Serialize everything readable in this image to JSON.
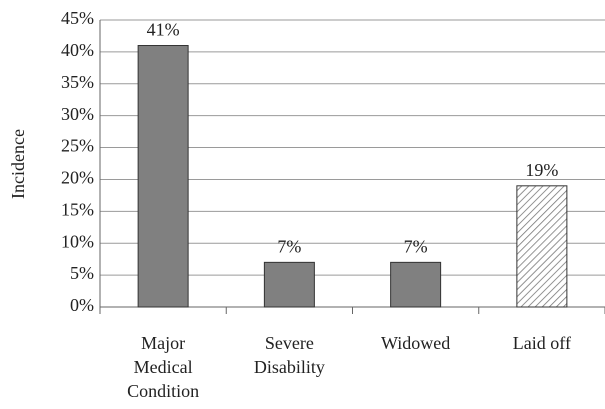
{
  "chart_data": {
    "type": "bar",
    "y_label": "Incidence",
    "categories": [
      "Major Medical Condition",
      "Severe Disability",
      "Widowed",
      "Laid off"
    ],
    "values": [
      41,
      7,
      7,
      19
    ],
    "value_labels": [
      "41%",
      "7%",
      "7%",
      "19%"
    ],
    "color": "#808080",
    "patterns": [
      "solid",
      "solid",
      "solid",
      "hatch"
    ],
    "ylim": [
      0,
      45
    ],
    "yticks": [
      {
        "value": 0,
        "label": "0%"
      },
      {
        "value": 5,
        "label": "5%"
      },
      {
        "value": 10,
        "label": "10%"
      },
      {
        "value": 15,
        "label": "15%"
      },
      {
        "value": 20,
        "label": "20%"
      },
      {
        "value": 25,
        "label": "25%"
      },
      {
        "value": 30,
        "label": "30%"
      },
      {
        "value": 35,
        "label": "35%"
      },
      {
        "value": 40,
        "label": "40%"
      },
      {
        "value": 45,
        "label": "45%"
      }
    ],
    "grid": true
  }
}
